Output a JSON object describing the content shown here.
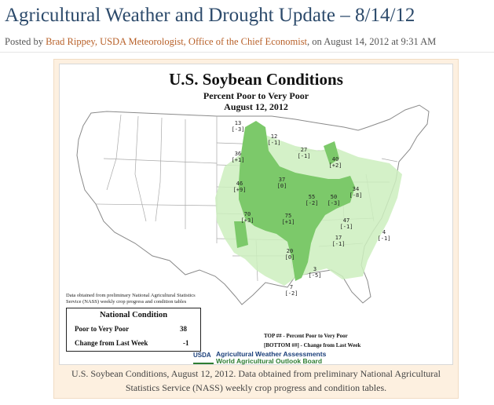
{
  "post": {
    "title": "Agricultural Weather and Drought Update – 8/14/12",
    "byline_prefix": "Posted by ",
    "author": "Brad Rippey, USDA Meteorologist, Office of the Chief Economist",
    "byline_suffix": ", on August 14, 2012 at 9:31 AM"
  },
  "map": {
    "title": "U.S. Soybean Conditions",
    "subtitle_line1": "Percent Poor to Very Poor",
    "subtitle_line2": "August 12, 2012",
    "data_note": "Data obtained from preliminary National Agricultural Statistics Service (NASS) weekly crop progress and condition tables",
    "national": {
      "heading": "National Condition",
      "row1_label": "Poor to Very Poor",
      "row1_value": "38",
      "row2_label": "Change from Last Week",
      "row2_value": "-1"
    },
    "legend_top": "TOP ## - Percent Poor to Very Poor",
    "legend_bottom": "[BOTTOM ##] - Change from Last Week",
    "logo_text": "USDA",
    "agency_line1": "Agricultural Weather Assessments",
    "agency_line2": "World Agricultural Outlook Board",
    "colors": {
      "area_dark": "#7cc96a",
      "area_light": "#cdeebe",
      "outline": "#888888"
    },
    "states": [
      {
        "name": "ND",
        "top": "13",
        "bottom": "[-3]"
      },
      {
        "name": "MN",
        "top": "12",
        "bottom": "[-1]"
      },
      {
        "name": "SD",
        "top": "36",
        "bottom": "[+1]"
      },
      {
        "name": "WI",
        "top": "27",
        "bottom": "[-1]"
      },
      {
        "name": "MI",
        "top": "40",
        "bottom": "[+2]"
      },
      {
        "name": "NE",
        "top": "46",
        "bottom": "[+9]"
      },
      {
        "name": "IA",
        "top": "37",
        "bottom": "[0]"
      },
      {
        "name": "IL",
        "top": "55",
        "bottom": "[-2]"
      },
      {
        "name": "IN",
        "top": "50",
        "bottom": "[-3]"
      },
      {
        "name": "OH",
        "top": "34",
        "bottom": "[-8]"
      },
      {
        "name": "KS",
        "top": "70",
        "bottom": "[+3]"
      },
      {
        "name": "MO",
        "top": "75",
        "bottom": "[+1]"
      },
      {
        "name": "KY",
        "top": "47",
        "bottom": "[-1]"
      },
      {
        "name": "NC",
        "top": "4",
        "bottom": "[-1]"
      },
      {
        "name": "TN",
        "top": "17",
        "bottom": "[-1]"
      },
      {
        "name": "AR",
        "top": "20",
        "bottom": "[0]"
      },
      {
        "name": "MS",
        "top": "3",
        "bottom": "[-5]"
      },
      {
        "name": "LA",
        "top": "7",
        "bottom": "[-2]"
      }
    ]
  },
  "caption": "U.S. Soybean Conditions, August 12, 2012. Data obtained from preliminary National Agricultural Statistics Service (NASS) weekly crop progress and condition tables."
}
